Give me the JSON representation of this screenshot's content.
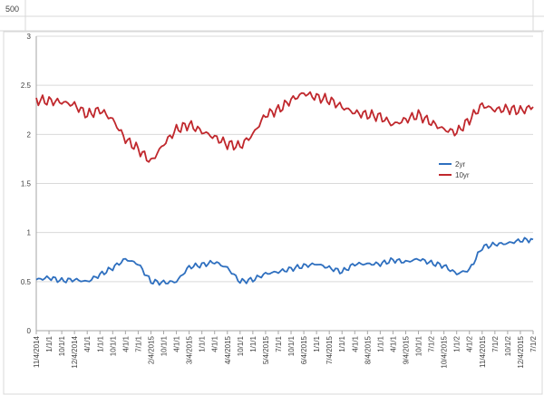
{
  "sheet": {
    "top_cell_value": "500"
  },
  "chart_data": {
    "type": "line",
    "title": "",
    "xlabel": "",
    "ylabel": "",
    "ylim": [
      0,
      3
    ],
    "yticks": [
      "0",
      "0.5",
      "1",
      "1.5",
      "2",
      "2.5",
      "3"
    ],
    "grid": "horizontal",
    "legend_position": "right",
    "categories": [
      "11/4/2014",
      "1/1/1",
      "10/1/1",
      "12/4/2014",
      "4/1/1",
      "1/1/1",
      "10/1/1",
      "4/1/1",
      "7/1/1",
      "2/4/2015",
      "10/1/1",
      "4/1/1",
      "3/4/2015",
      "1/1/1",
      "4/1/1",
      "4/4/2015",
      "10/1/1",
      "1/1/1",
      "5/4/2015",
      "7/1/1",
      "10/1/1",
      "6/4/2015",
      "1/1/1",
      "7/4/2015",
      "1/1/1",
      "4/1/1",
      "8/4/2015",
      "1/1/1",
      "4/1/1",
      "9/4/2015",
      "10/1/1",
      "7/1/2",
      "10/4/2015",
      "1/1/2",
      "4/1/2",
      "11/4/2015",
      "7/1/2",
      "10/1/2",
      "12/4/2015",
      "7/1/2"
    ],
    "series": [
      {
        "name": "2yr",
        "color": "#2e6fbf",
        "values": [
          0.52,
          0.54,
          0.51,
          0.52,
          0.5,
          0.57,
          0.64,
          0.73,
          0.68,
          0.5,
          0.49,
          0.5,
          0.65,
          0.67,
          0.7,
          0.64,
          0.5,
          0.52,
          0.58,
          0.6,
          0.63,
          0.66,
          0.68,
          0.64,
          0.6,
          0.68,
          0.68,
          0.68,
          0.72,
          0.7,
          0.73,
          0.69,
          0.66,
          0.58,
          0.62,
          0.85,
          0.88,
          0.89,
          0.92,
          0.93
        ]
      },
      {
        "name": "10yr",
        "color": "#c0282d",
        "values": [
          2.35,
          2.34,
          2.33,
          2.3,
          2.2,
          2.25,
          2.15,
          1.95,
          1.85,
          1.72,
          1.9,
          2.05,
          2.1,
          2.03,
          1.97,
          1.9,
          1.88,
          2.0,
          2.2,
          2.25,
          2.35,
          2.42,
          2.38,
          2.35,
          2.28,
          2.22,
          2.2,
          2.18,
          2.1,
          2.15,
          2.2,
          2.12,
          2.05,
          2.02,
          2.15,
          2.3,
          2.25,
          2.26,
          2.24,
          2.28
        ]
      }
    ]
  }
}
